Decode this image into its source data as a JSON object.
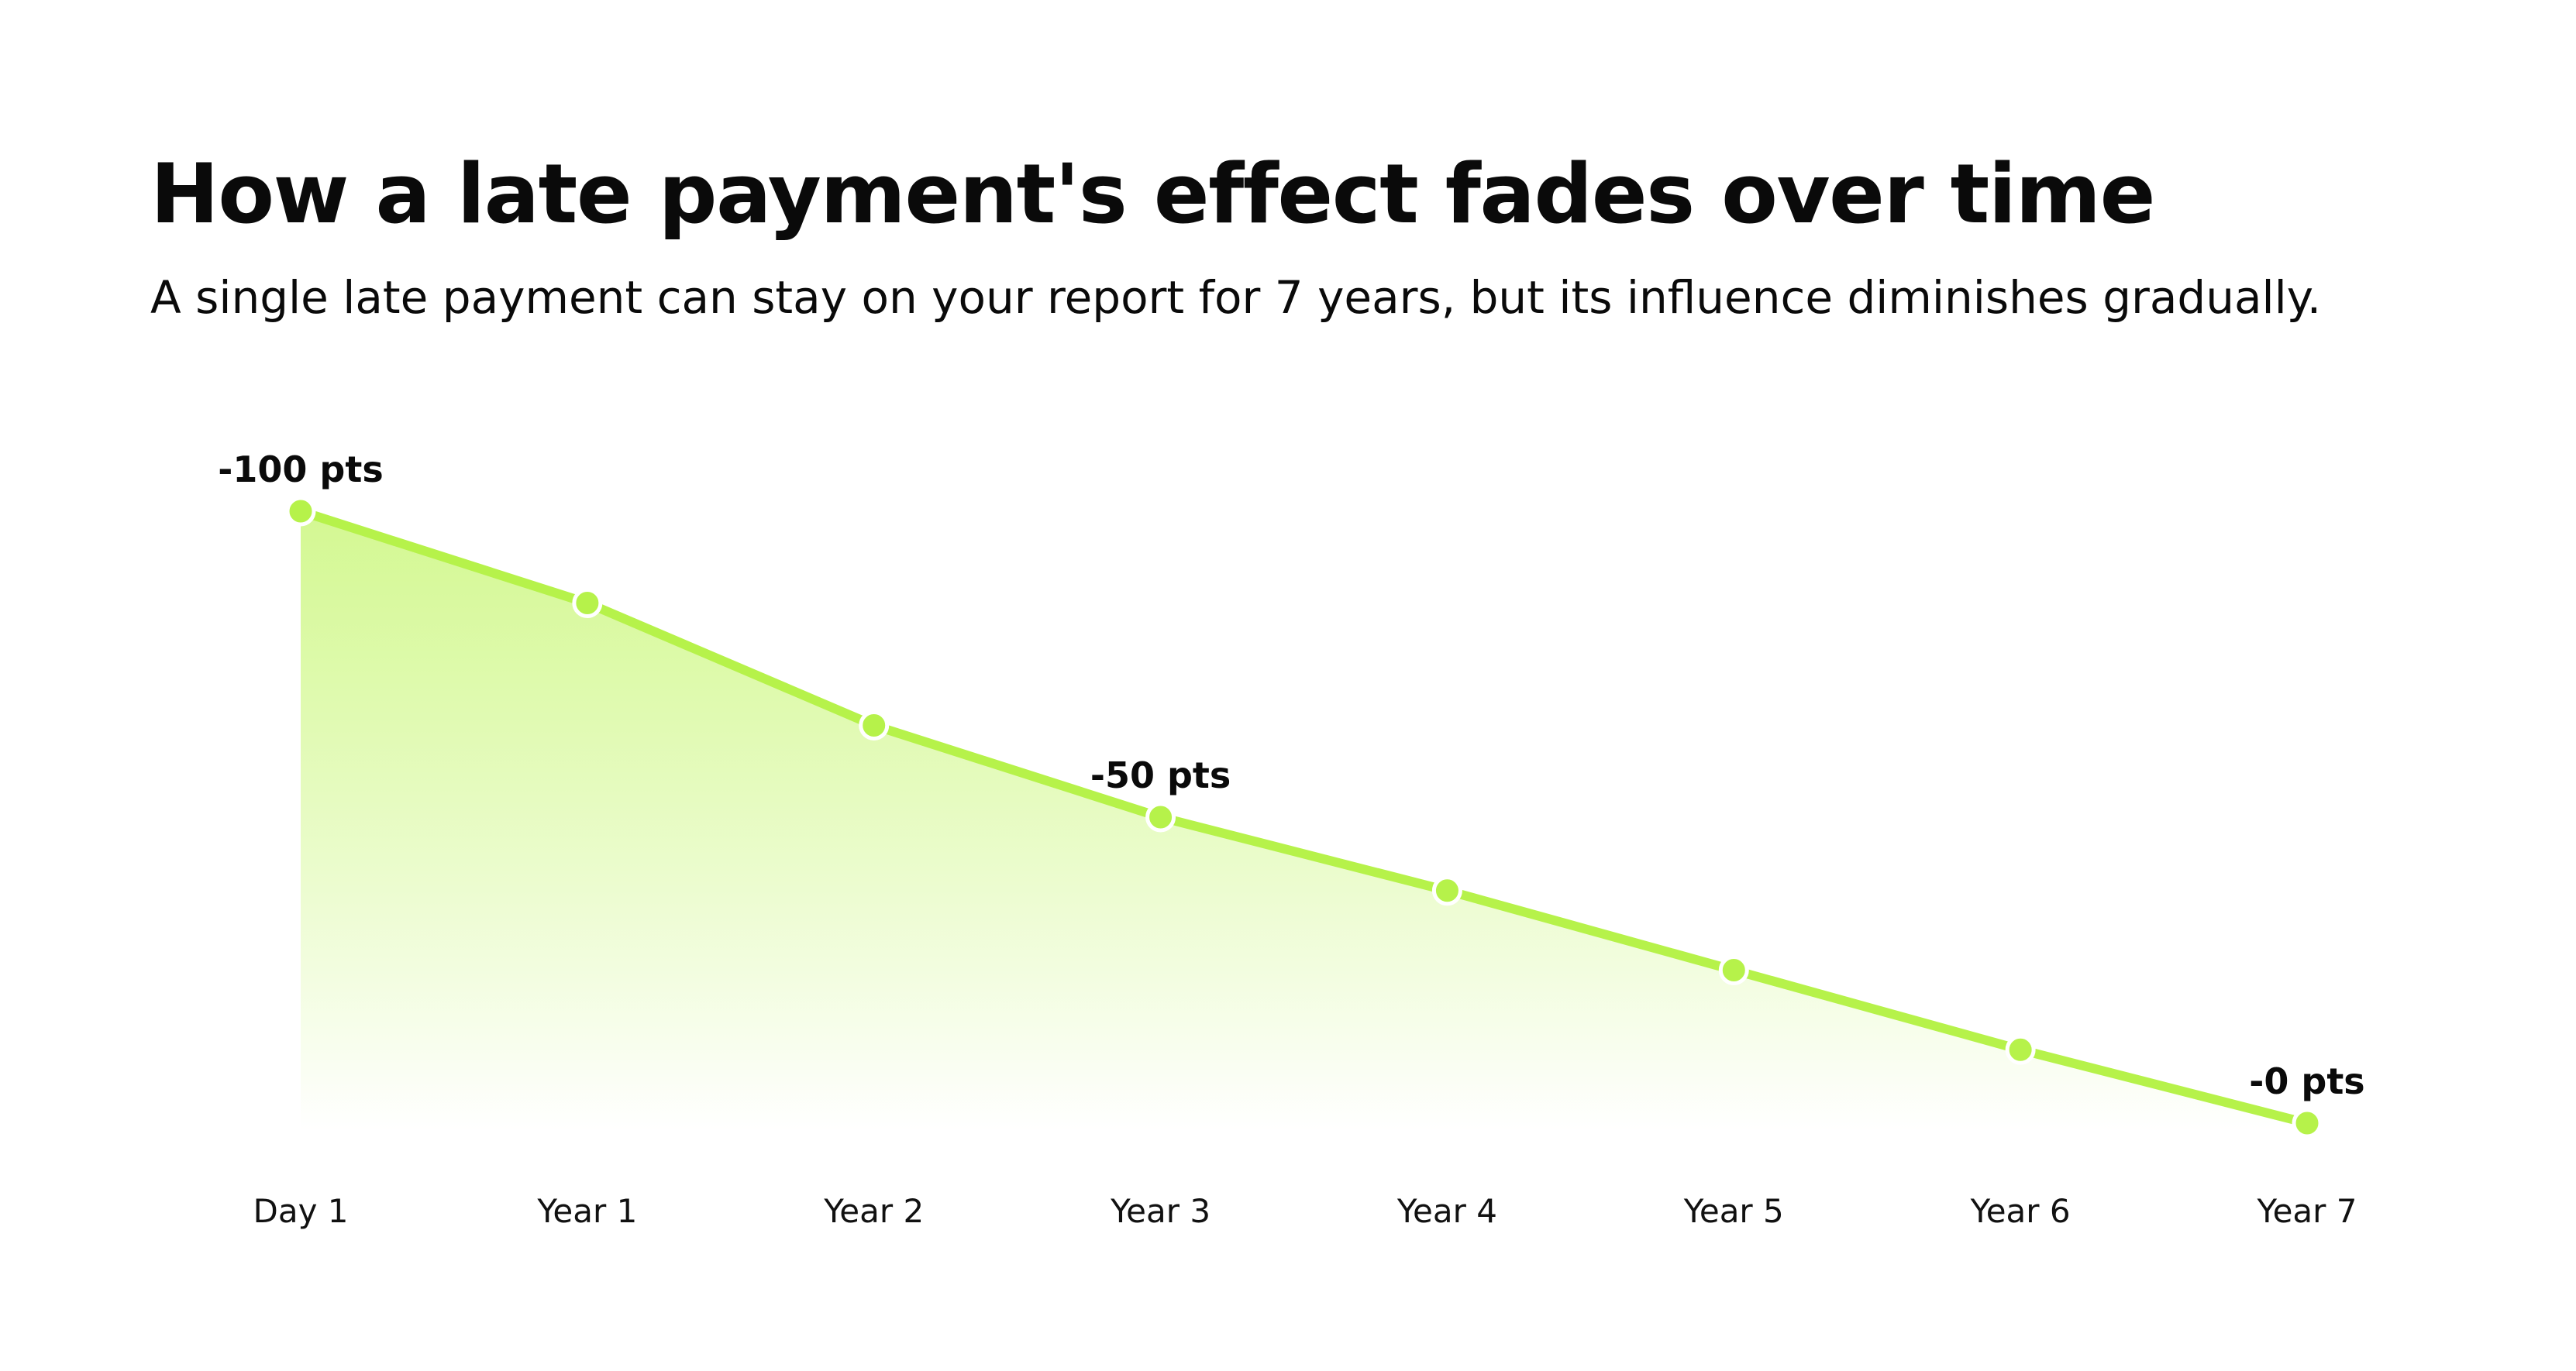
{
  "title": "How a late payment's effect fades over time",
  "subtitle": "A single late payment can stay on your report for 7 years, but its influence diminishes gradually.",
  "chart_data": {
    "type": "area",
    "title": "How a late payment's effect fades over time",
    "subtitle": "A single late payment can stay on your report for 7 years, but its influence diminishes gradually.",
    "categories": [
      "Day 1",
      "Year 1",
      "Year 2",
      "Year 3",
      "Year 4",
      "Year 5",
      "Year 6",
      "Year 7"
    ],
    "values": [
      -100,
      -85,
      -65,
      -50,
      -38,
      -25,
      -12,
      0
    ],
    "ylim": [
      -100,
      0
    ],
    "grid": false,
    "legend": "none",
    "annotations": [
      {
        "index": 0,
        "text": "-100 pts"
      },
      {
        "index": 3,
        "text": "-50 pts"
      },
      {
        "index": 7,
        "text": "-0 pts"
      }
    ]
  },
  "colors": {
    "line": "#b6f24a",
    "fill_top": "#ccf77f",
    "marker_stroke": "#ffffff",
    "text": "#0a0a0a"
  }
}
